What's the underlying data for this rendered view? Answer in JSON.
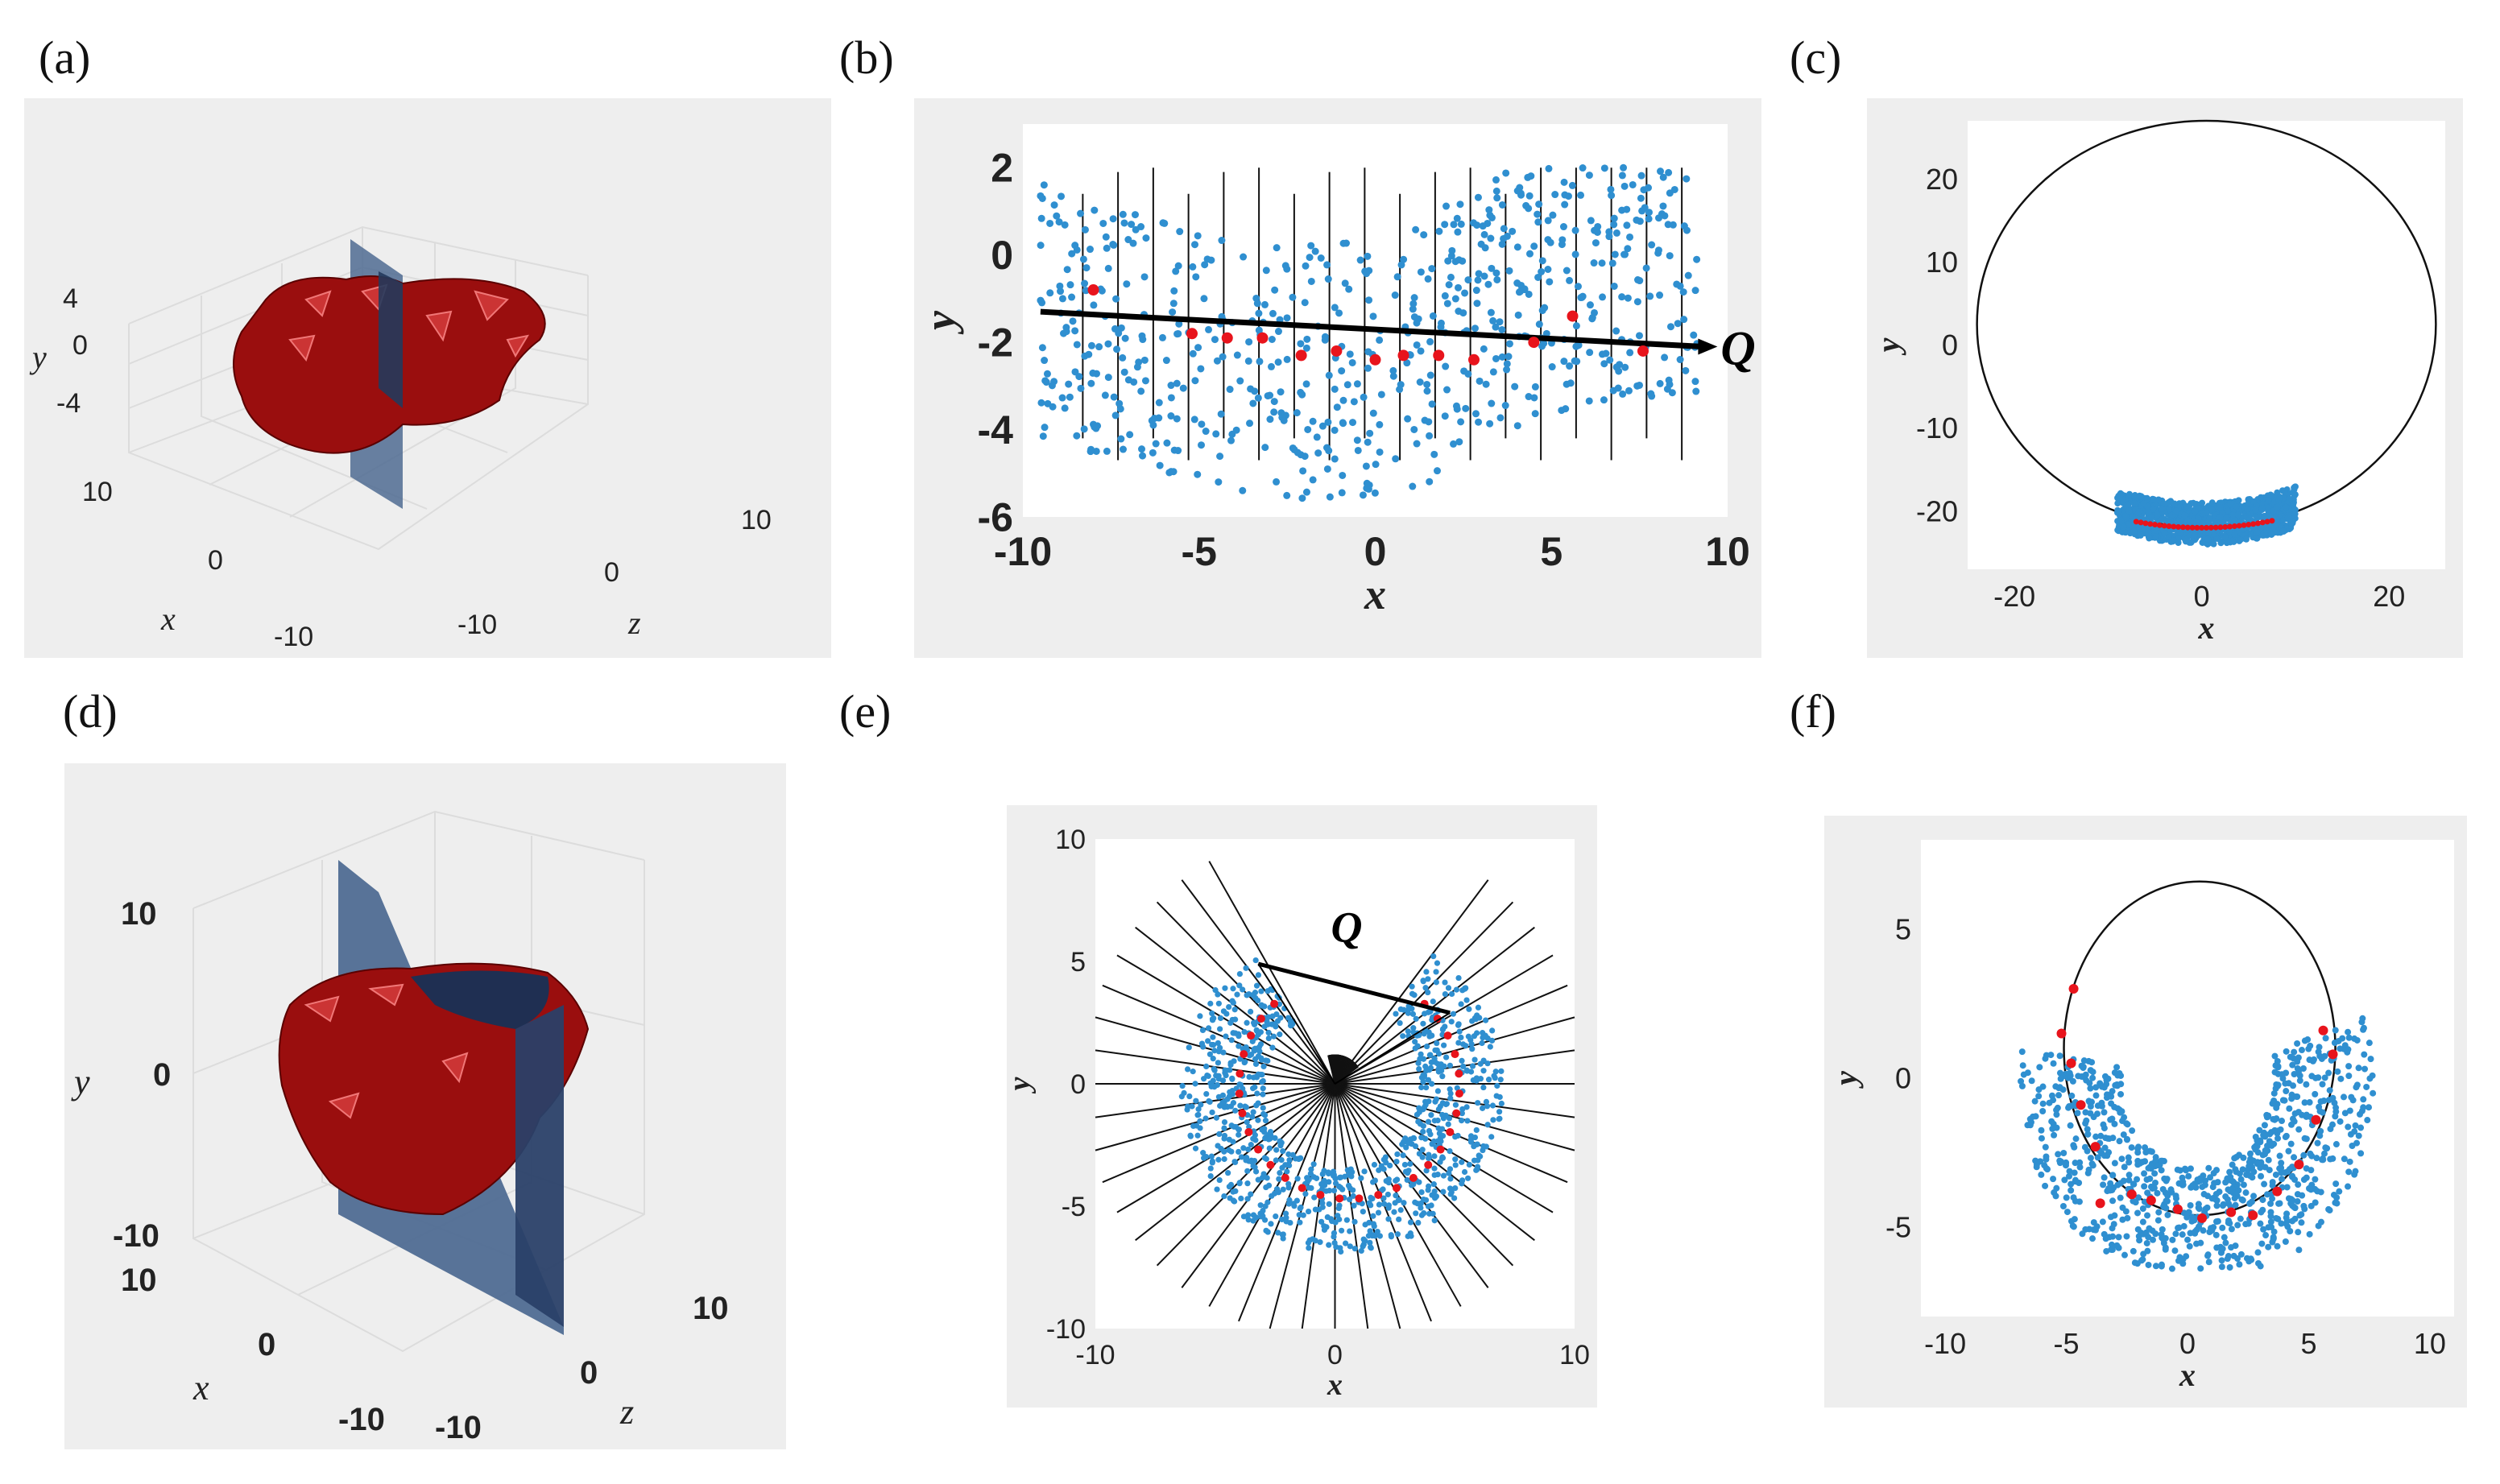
{
  "panels": {
    "a": {
      "label": "(a)",
      "xlabel": "x",
      "ylabel": "y",
      "zlabel": "z",
      "yticks": [
        "4",
        "0",
        "-4"
      ],
      "xticks": [
        "10",
        "0",
        "-10"
      ],
      "zticks": [
        "10",
        "0",
        "-10"
      ]
    },
    "b": {
      "label": "(b)",
      "xlabel": "x",
      "ylabel": "y",
      "annotation": "Q"
    },
    "c": {
      "label": "(c)",
      "xlabel": "x",
      "ylabel": "y"
    },
    "d": {
      "label": "(d)",
      "xlabel": "x",
      "ylabel": "y",
      "zlabel": "z",
      "yticks": [
        "10",
        "0",
        "-10"
      ],
      "xticks": [
        "10",
        "0",
        "-10"
      ],
      "zticks": [
        "10",
        "0",
        "-10"
      ]
    },
    "e": {
      "label": "(e)",
      "xlabel": "x",
      "ylabel": "y",
      "annotation": "Q"
    },
    "f": {
      "label": "(f)",
      "xlabel": "x",
      "ylabel": "y"
    }
  },
  "chart_data": [
    {
      "id": "b",
      "type": "scatter",
      "xlim": [
        -10,
        10
      ],
      "ylim": [
        -6,
        3
      ],
      "xticks": [
        -10,
        -5,
        0,
        5,
        10
      ],
      "yticks": [
        2,
        0,
        -2,
        -4,
        -6
      ],
      "xlabel": "x",
      "ylabel": "y",
      "line_Q": [
        [
          -9.5,
          -1.3
        ],
        [
          9.3,
          -2.1
        ]
      ],
      "red_points": [
        [
          -8,
          -0.8
        ],
        [
          -5.2,
          -1.8
        ],
        [
          -4.2,
          -1.9
        ],
        [
          -3.2,
          -1.9
        ],
        [
          -2.1,
          -2.3
        ],
        [
          -1.1,
          -2.2
        ],
        [
          0,
          -2.4
        ],
        [
          0.8,
          -2.3
        ],
        [
          1.8,
          -2.3
        ],
        [
          2.8,
          -2.4
        ],
        [
          4.5,
          -2.0
        ],
        [
          5.6,
          -1.4
        ],
        [
          7.6,
          -2.2
        ]
      ],
      "slices_x": [
        -8.3,
        -7.3,
        -6.3,
        -5.3,
        -4.3,
        -3.3,
        -2.3,
        -1.3,
        -0.3,
        0.7,
        1.7,
        2.7,
        3.7,
        4.7,
        5.7,
        6.7,
        7.7,
        8.7
      ]
    },
    {
      "id": "c",
      "type": "scatter",
      "xlim": [
        -25,
        26
      ],
      "ylim": [
        -27,
        27
      ],
      "xticks": [
        -20,
        0,
        20
      ],
      "yticks": [
        20,
        10,
        0,
        -10,
        -20
      ],
      "xlabel": "x",
      "ylabel": "y",
      "circle": {
        "cx": 0.5,
        "cy": 2.5,
        "r": 24.5
      }
    },
    {
      "id": "e",
      "type": "scatter",
      "xlim": [
        -10,
        10
      ],
      "ylim": [
        -10,
        10
      ],
      "xticks": [
        -10,
        0,
        10
      ],
      "yticks": [
        10,
        5,
        0,
        -5,
        -10
      ],
      "xlabel": "x",
      "ylabel": "y",
      "line_Q": [
        [
          -3.2,
          4.9
        ],
        [
          4.8,
          2.9
        ]
      ],
      "rays": 48
    },
    {
      "id": "f",
      "type": "scatter",
      "xlim": [
        -11,
        11
      ],
      "ylim": [
        -8,
        8
      ],
      "xticks": [
        -10,
        -5,
        0,
        5,
        10
      ],
      "yticks": [
        5,
        0,
        -5
      ],
      "xlabel": "x",
      "ylabel": "y",
      "circle": {
        "cx": 0.5,
        "cy": 1.0,
        "r": 5.6
      },
      "red_points": [
        [
          -5.2,
          1.5
        ],
        [
          -4.7,
          3.0
        ],
        [
          -4.8,
          0.5
        ],
        [
          -4.4,
          -0.9
        ],
        [
          -3.8,
          -2.3
        ],
        [
          -3.6,
          -4.2
        ],
        [
          -2.3,
          -3.9
        ],
        [
          -1.5,
          -4.1
        ],
        [
          -0.4,
          -4.4
        ],
        [
          0.6,
          -4.7
        ],
        [
          1.8,
          -4.5
        ],
        [
          2.7,
          -4.6
        ],
        [
          3.7,
          -3.8
        ],
        [
          4.6,
          -2.9
        ],
        [
          5.3,
          -1.4
        ],
        [
          6.0,
          0.8
        ],
        [
          5.6,
          1.6
        ]
      ]
    }
  ]
}
